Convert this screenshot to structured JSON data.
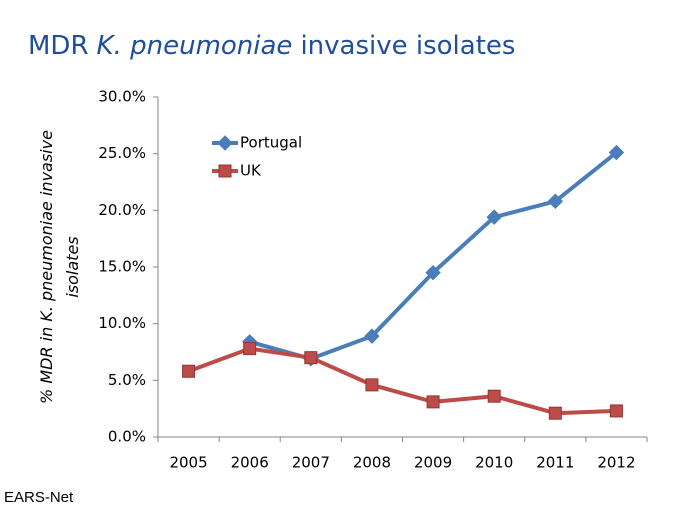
{
  "chart_data": {
    "type": "line",
    "title": [
      "MDR",
      "K. pneumoniae",
      "invasive isolates"
    ],
    "y_label": [
      "% MDR in K. pneumoniae invasive",
      "isolates"
    ],
    "source": "EARS-Net",
    "categories": [
      "2005",
      "2006",
      "2007",
      "2008",
      "2009",
      "2010",
      "2011",
      "2012"
    ],
    "series": [
      {
        "name": "Portugal",
        "color": "#4a7ebb",
        "marker": "diamond",
        "values": [
          null,
          8.4,
          6.9,
          8.9,
          14.5,
          19.4,
          20.8,
          25.1
        ]
      },
      {
        "name": "UK",
        "color": "#be4b48",
        "marker": "square",
        "values": [
          5.8,
          7.8,
          7.0,
          4.6,
          3.1,
          3.6,
          2.1,
          2.3
        ]
      }
    ],
    "ylim": [
      0,
      30
    ],
    "yticks": [
      {
        "value": 0,
        "label": "0.0%"
      },
      {
        "value": 5,
        "label": "5.0%"
      },
      {
        "value": 10,
        "label": "10.0%"
      },
      {
        "value": 15,
        "label": "15.0%"
      },
      {
        "value": 20,
        "label": "20.0%"
      },
      {
        "value": 25,
        "label": "25.0%"
      },
      {
        "value": 30,
        "label": "30.0%"
      }
    ],
    "grid": false,
    "legend": "top-left"
  }
}
